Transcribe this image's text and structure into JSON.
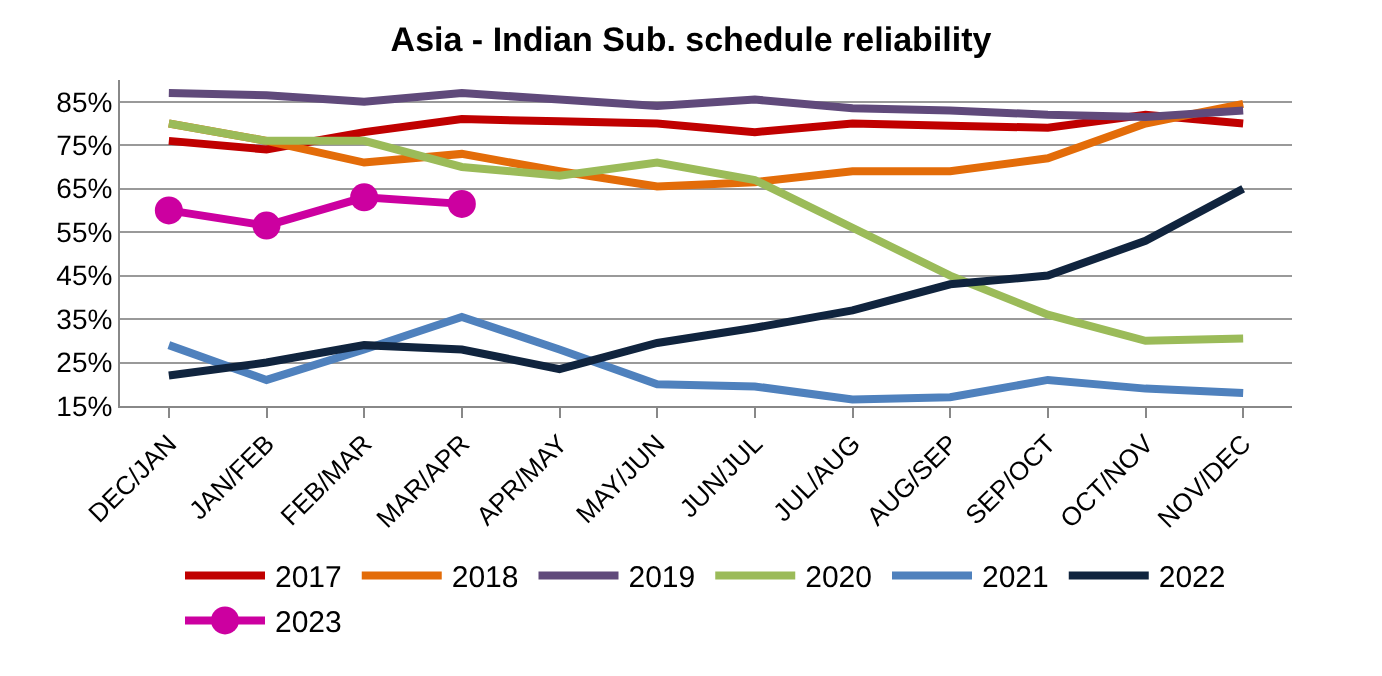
{
  "chart_data": {
    "type": "line",
    "title": "Asia - Indian Sub. schedule reliability",
    "categories": [
      "DEC/JAN",
      "JAN/FEB",
      "FEB/MAR",
      "MAR/APR",
      "APR/MAY",
      "MAY/JUN",
      "JUN/JUL",
      "JUL/AUG",
      "AUG/SEP",
      "SEP/OCT",
      "OCT/NOV",
      "NOV/DEC"
    ],
    "series": [
      {
        "name": "2017",
        "color": "#c00000",
        "values": [
          76,
          74,
          78,
          81,
          80.5,
          80,
          78,
          80,
          79.5,
          79,
          82,
          80
        ]
      },
      {
        "name": "2018",
        "color": "#e36c09",
        "values": [
          80,
          76,
          71,
          73,
          69,
          65.5,
          66.5,
          69,
          69,
          72,
          80,
          84.5
        ]
      },
      {
        "name": "2019",
        "color": "#604a7b",
        "values": [
          87,
          86.5,
          85,
          87,
          85.5,
          84,
          85.5,
          83.5,
          83,
          82,
          81.5,
          83
        ]
      },
      {
        "name": "2020",
        "color": "#9bbb59",
        "values": [
          80,
          76,
          76,
          70,
          68,
          71,
          67,
          56,
          45,
          36,
          30,
          30.5
        ]
      },
      {
        "name": "2021",
        "color": "#4f81bd",
        "values": [
          29,
          21,
          28,
          35.5,
          28,
          20,
          19.5,
          16.5,
          17,
          21,
          19,
          18
        ]
      },
      {
        "name": "2022",
        "color": "#10243e",
        "values": [
          22,
          25,
          29,
          28,
          23.5,
          29.5,
          33,
          37,
          43,
          45,
          53,
          65
        ]
      },
      {
        "name": "2023",
        "color": "#cc00a0",
        "marker": "circle",
        "values": [
          60,
          56.5,
          63,
          61.5,
          null,
          null,
          null,
          null,
          null,
          null,
          null,
          null
        ]
      }
    ],
    "ylim": [
      15,
      90
    ],
    "yticks": [
      {
        "value": 15,
        "label": "15%"
      },
      {
        "value": 25,
        "label": "25%"
      },
      {
        "value": 35,
        "label": "35%"
      },
      {
        "value": 45,
        "label": "45%"
      },
      {
        "value": 55,
        "label": "55%"
      },
      {
        "value": 65,
        "label": "65%"
      },
      {
        "value": 75,
        "label": "75%"
      },
      {
        "value": 85,
        "label": "85%"
      }
    ],
    "grid": "y",
    "legend": "bottom"
  }
}
